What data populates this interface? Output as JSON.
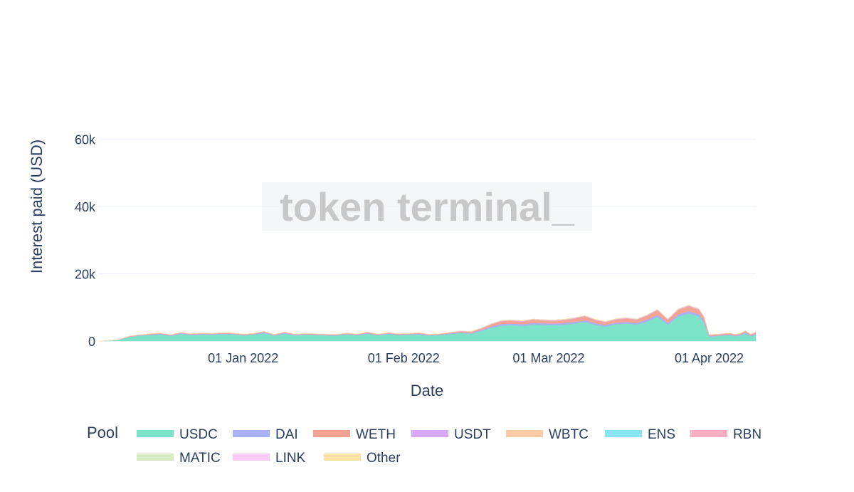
{
  "chart_data": {
    "type": "area",
    "stacked": true,
    "title": "",
    "xlabel": "Date",
    "ylabel": "Interest paid (USD)",
    "watermark": "token terminal_",
    "legend_title": "Pool",
    "legend_position": "bottom",
    "grid": "horizontal",
    "xlim": [
      "2021-12-04",
      "2022-04-10"
    ],
    "ylim": [
      0,
      76000
    ],
    "x_ticks": [
      {
        "date": "2022-01-01",
        "label": "01 Jan 2022"
      },
      {
        "date": "2022-02-01",
        "label": "01 Feb 2022"
      },
      {
        "date": "2022-03-01",
        "label": "01 Mar 2022"
      },
      {
        "date": "2022-04-01",
        "label": "01 Apr 2022"
      }
    ],
    "y_ticks": [
      {
        "value": 0,
        "label": "0"
      },
      {
        "value": 20000,
        "label": "20k"
      },
      {
        "value": 40000,
        "label": "40k"
      },
      {
        "value": 60000,
        "label": "60k"
      }
    ],
    "x": [
      "2021-12-04",
      "2021-12-06",
      "2021-12-08",
      "2021-12-10",
      "2021-12-12",
      "2021-12-14",
      "2021-12-16",
      "2021-12-18",
      "2021-12-20",
      "2021-12-22",
      "2021-12-24",
      "2021-12-26",
      "2021-12-28",
      "2021-12-30",
      "2022-01-01",
      "2022-01-03",
      "2022-01-05",
      "2022-01-07",
      "2022-01-09",
      "2022-01-11",
      "2022-01-13",
      "2022-01-15",
      "2022-01-17",
      "2022-01-19",
      "2022-01-21",
      "2022-01-23",
      "2022-01-25",
      "2022-01-27",
      "2022-01-29",
      "2022-01-31",
      "2022-02-02",
      "2022-02-04",
      "2022-02-06",
      "2022-02-08",
      "2022-02-10",
      "2022-02-12",
      "2022-02-14",
      "2022-02-16",
      "2022-02-18",
      "2022-02-20",
      "2022-02-22",
      "2022-02-24",
      "2022-02-26",
      "2022-02-28",
      "2022-03-02",
      "2022-03-04",
      "2022-03-06",
      "2022-03-08",
      "2022-03-10",
      "2022-03-12",
      "2022-03-14",
      "2022-03-16",
      "2022-03-18",
      "2022-03-20",
      "2022-03-22",
      "2022-03-24",
      "2022-03-26",
      "2022-03-28",
      "2022-03-30",
      "2022-03-31",
      "2022-04-01",
      "2022-04-02",
      "2022-04-03",
      "2022-04-04",
      "2022-04-05",
      "2022-04-06",
      "2022-04-07",
      "2022-04-08",
      "2022-04-09",
      "2022-04-10"
    ],
    "series": [
      {
        "name": "USDC",
        "color": "#7de3c8",
        "values": [
          0,
          100,
          300,
          1200,
          1600,
          1800,
          2000,
          1500,
          2200,
          1800,
          2000,
          1900,
          2100,
          2000,
          1700,
          1900,
          2400,
          1600,
          2200,
          1700,
          1900,
          1800,
          1700,
          1600,
          2000,
          1700,
          2200,
          1700,
          2100,
          1800,
          1900,
          2000,
          1600,
          1800,
          2100,
          2400,
          2200,
          3000,
          4000,
          4600,
          4700,
          4500,
          4900,
          4800,
          4700,
          4900,
          5200,
          5700,
          4800,
          4300,
          5000,
          5200,
          4900,
          5800,
          7200,
          4900,
          7300,
          8200,
          7400,
          5500,
          1300,
          1400,
          1500,
          1700,
          1800,
          1400,
          1700,
          2300,
          1400,
          1900
        ]
      },
      {
        "name": "DAI",
        "color": "#aab0f6",
        "values": [
          0,
          0,
          50,
          100,
          100,
          150,
          150,
          150,
          150,
          150,
          150,
          150,
          150,
          150,
          150,
          150,
          200,
          150,
          200,
          150,
          150,
          150,
          150,
          150,
          150,
          150,
          200,
          150,
          150,
          150,
          150,
          200,
          150,
          150,
          200,
          200,
          200,
          300,
          400,
          500,
          500,
          500,
          500,
          500,
          500,
          500,
          500,
          500,
          500,
          500,
          500,
          500,
          500,
          600,
          600,
          500,
          600,
          700,
          600,
          500,
          200,
          200,
          200,
          200,
          200,
          200,
          200,
          300,
          200,
          300
        ]
      },
      {
        "name": "WETH",
        "color": "#f4a393",
        "values": [
          0,
          0,
          50,
          100,
          100,
          150,
          150,
          150,
          150,
          150,
          150,
          150,
          150,
          150,
          150,
          150,
          200,
          150,
          200,
          150,
          150,
          150,
          150,
          150,
          150,
          150,
          200,
          150,
          150,
          150,
          150,
          200,
          150,
          150,
          200,
          300,
          300,
          400,
          600,
          800,
          800,
          800,
          900,
          800,
          800,
          800,
          1000,
          1100,
          900,
          800,
          900,
          1000,
          900,
          1100,
          1300,
          900,
          1300,
          1400,
          1300,
          1000,
          300,
          300,
          300,
          300,
          300,
          300,
          300,
          400,
          300,
          400
        ]
      },
      {
        "name": "USDT",
        "color": "#d8a9f6",
        "values": [
          0,
          0,
          20,
          30,
          30,
          30,
          40,
          30,
          40,
          30,
          40,
          30,
          40,
          30,
          30,
          30,
          40,
          30,
          40,
          30,
          30,
          30,
          30,
          30,
          40,
          30,
          40,
          30,
          40,
          30,
          30,
          40,
          30,
          30,
          40,
          60,
          60,
          80,
          100,
          120,
          120,
          120,
          120,
          120,
          120,
          120,
          120,
          130,
          120,
          110,
          120,
          120,
          120,
          140,
          160,
          120,
          160,
          170,
          160,
          130,
          40,
          40,
          40,
          40,
          40,
          40,
          40,
          50,
          40,
          50
        ]
      },
      {
        "name": "WBTC",
        "color": "#fdcba6",
        "values": [
          0,
          0,
          20,
          30,
          30,
          30,
          40,
          30,
          40,
          30,
          40,
          30,
          40,
          30,
          30,
          30,
          40,
          30,
          40,
          30,
          30,
          30,
          30,
          30,
          40,
          30,
          40,
          30,
          40,
          30,
          30,
          40,
          30,
          30,
          40,
          60,
          60,
          80,
          100,
          120,
          120,
          120,
          120,
          120,
          120,
          120,
          120,
          130,
          120,
          110,
          120,
          120,
          120,
          140,
          160,
          120,
          160,
          170,
          160,
          130,
          40,
          40,
          40,
          40,
          40,
          40,
          40,
          50,
          40,
          50
        ]
      },
      {
        "name": "ENS",
        "color": "#8ae4f4",
        "values": [
          0,
          0,
          0,
          0,
          0,
          0,
          0,
          0,
          0,
          0,
          0,
          0,
          0,
          0,
          0,
          0,
          0,
          0,
          0,
          0,
          0,
          0,
          0,
          0,
          0,
          0,
          0,
          0,
          0,
          0,
          0,
          0,
          0,
          0,
          0,
          0,
          0,
          0,
          0,
          0,
          0,
          0,
          0,
          0,
          0,
          0,
          0,
          0,
          0,
          0,
          0,
          0,
          0,
          0,
          0,
          0,
          0,
          0,
          0,
          0,
          0,
          0,
          0,
          0,
          0,
          0,
          0,
          0,
          0,
          0
        ]
      },
      {
        "name": "RBN",
        "color": "#fcaec5",
        "values": [
          0,
          0,
          0,
          0,
          0,
          0,
          0,
          0,
          0,
          0,
          0,
          0,
          0,
          0,
          0,
          0,
          0,
          0,
          0,
          0,
          0,
          0,
          0,
          0,
          0,
          0,
          0,
          0,
          0,
          0,
          0,
          0,
          0,
          0,
          0,
          0,
          0,
          0,
          0,
          0,
          0,
          0,
          0,
          0,
          0,
          0,
          0,
          0,
          0,
          0,
          0,
          0,
          0,
          0,
          0,
          0,
          0,
          0,
          0,
          0,
          0,
          0,
          0,
          0,
          0,
          0,
          0,
          0,
          0,
          0
        ]
      },
      {
        "name": "MATIC",
        "color": "#d7ecc4",
        "values": [
          0,
          0,
          0,
          0,
          0,
          0,
          0,
          0,
          0,
          0,
          0,
          0,
          0,
          0,
          0,
          0,
          0,
          0,
          0,
          0,
          0,
          0,
          0,
          0,
          0,
          0,
          0,
          0,
          0,
          0,
          0,
          0,
          0,
          0,
          0,
          0,
          0,
          0,
          0,
          0,
          0,
          0,
          0,
          0,
          0,
          0,
          0,
          0,
          0,
          0,
          0,
          0,
          0,
          0,
          0,
          0,
          0,
          0,
          0,
          0,
          0,
          0,
          0,
          0,
          0,
          0,
          0,
          0,
          0,
          0
        ]
      },
      {
        "name": "LINK",
        "color": "#fccaf7",
        "values": [
          0,
          0,
          0,
          0,
          0,
          0,
          0,
          0,
          0,
          0,
          0,
          0,
          0,
          0,
          0,
          0,
          0,
          0,
          0,
          0,
          0,
          0,
          0,
          0,
          0,
          0,
          0,
          0,
          0,
          0,
          0,
          0,
          0,
          0,
          0,
          0,
          0,
          0,
          0,
          0,
          0,
          0,
          0,
          0,
          0,
          0,
          0,
          0,
          0,
          0,
          0,
          0,
          0,
          0,
          0,
          0,
          0,
          0,
          0,
          0,
          0,
          0,
          0,
          0,
          0,
          0,
          0,
          0,
          0,
          0
        ]
      },
      {
        "name": "Other",
        "color": "#fbe1a5",
        "values": [
          0,
          0,
          0,
          0,
          0,
          0,
          0,
          0,
          0,
          0,
          0,
          0,
          0,
          0,
          0,
          0,
          0,
          0,
          0,
          0,
          0,
          0,
          0,
          0,
          0,
          0,
          0,
          0,
          0,
          0,
          0,
          0,
          0,
          0,
          0,
          0,
          0,
          0,
          0,
          0,
          0,
          0,
          0,
          0,
          0,
          0,
          0,
          0,
          0,
          0,
          0,
          0,
          0,
          0,
          0,
          0,
          0,
          0,
          0,
          0,
          0,
          0,
          0,
          0,
          0,
          0,
          0,
          0,
          0,
          0
        ]
      }
    ]
  }
}
